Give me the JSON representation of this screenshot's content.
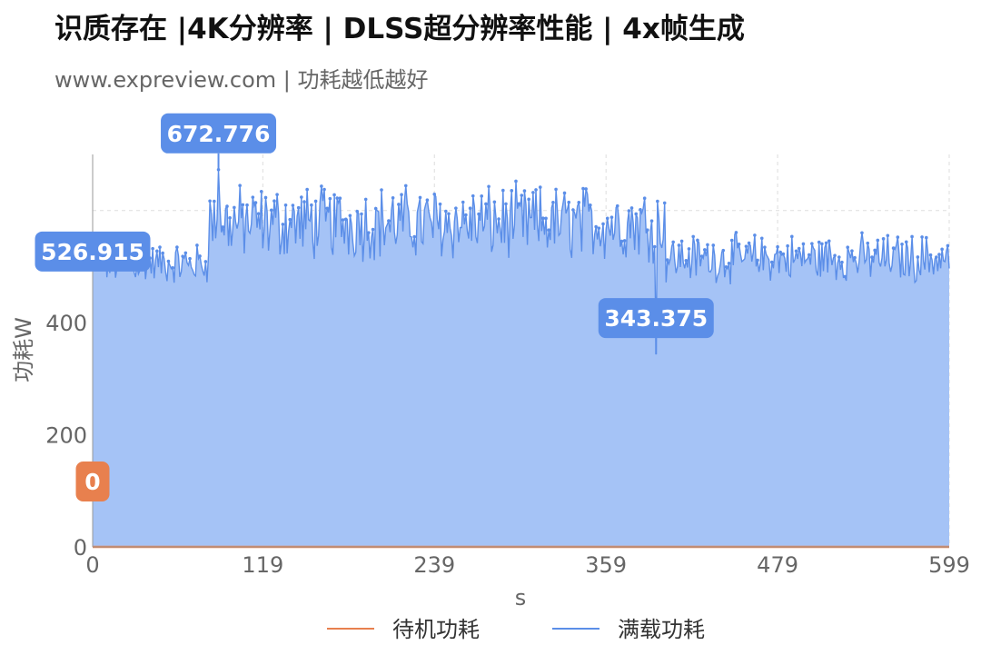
{
  "chart_data": {
    "type": "area",
    "title": "识质存在  |4K分辨率 | DLSS超分辨率性能 | 4x帧生成",
    "subtitle": "www.expreview.com | 功耗越低越好",
    "xlabel": "s",
    "ylabel": "功耗W",
    "x_range": [
      0,
      599
    ],
    "x_ticks": [
      "0",
      "119",
      "239",
      "359",
      "479",
      "599"
    ],
    "y_range": [
      0,
      700
    ],
    "y_ticks": [
      "0",
      "200",
      "400"
    ],
    "grid": true,
    "legend_position": "bottom",
    "series": [
      {
        "name": "待机功耗",
        "color": "#e8804e",
        "constant_value": 0,
        "annotations": [
          {
            "label": "0",
            "x": 0,
            "y": 0
          }
        ]
      },
      {
        "name": "满载功耗",
        "color": "#5b8ee8",
        "fill": "#a5c3f6",
        "segments": [
          {
            "x_from": 0,
            "x_to": 80,
            "mean": 505,
            "spread": 30
          },
          {
            "x_from": 80,
            "x_to": 400,
            "mean": 578,
            "spread": 55
          },
          {
            "x_from": 400,
            "x_to": 599,
            "mean": 515,
            "spread": 35
          }
        ],
        "annotations": [
          {
            "label": "526.915",
            "x": 0,
            "y": 526.915
          },
          {
            "label": "672.776",
            "x": 88,
            "y": 672.776
          },
          {
            "label": "343.375",
            "x": 394,
            "y": 343.375
          }
        ]
      }
    ]
  }
}
